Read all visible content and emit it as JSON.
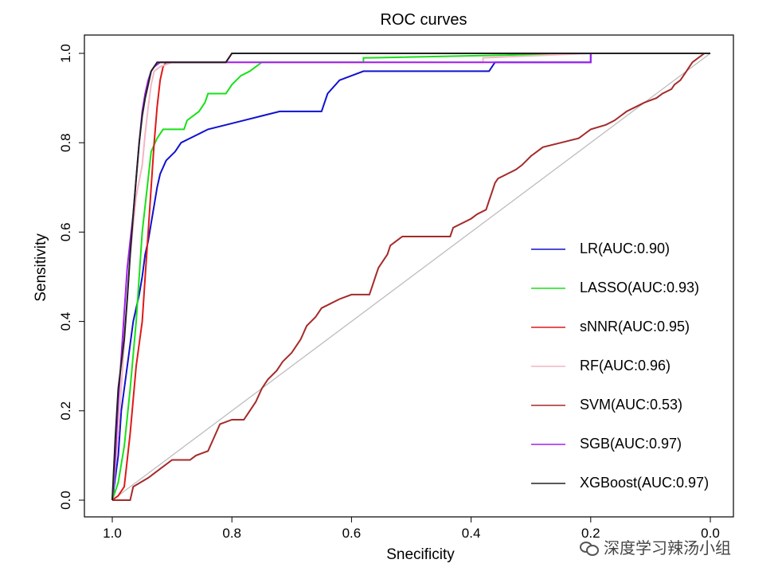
{
  "chart_data": {
    "type": "line",
    "title": "ROC curves",
    "xlabel": "Snecificity",
    "ylabel": "Sensitivity",
    "xlim": [
      1.0,
      0.0
    ],
    "ylim": [
      0.0,
      1.0
    ],
    "xticks": [
      "1.0",
      "0.8",
      "0.6",
      "0.4",
      "0.2",
      "0.0"
    ],
    "xtick_values": [
      1.0,
      0.8,
      0.6,
      0.4,
      0.2,
      0.0
    ],
    "yticks": [
      "0.0",
      "0.2",
      "0.4",
      "0.6",
      "0.8",
      "1.0"
    ],
    "ytick_values": [
      0.0,
      0.2,
      0.4,
      0.6,
      0.8,
      1.0
    ],
    "diagonal": true,
    "legend_position": "right",
    "series": [
      {
        "name": "LR(AUC:0.90)",
        "color": "#1010d0",
        "points": [
          [
            1.0,
            0.0
          ],
          [
            0.995,
            0.05
          ],
          [
            0.99,
            0.1
          ],
          [
            0.985,
            0.2
          ],
          [
            0.975,
            0.3
          ],
          [
            0.965,
            0.4
          ],
          [
            0.955,
            0.46
          ],
          [
            0.95,
            0.5
          ],
          [
            0.945,
            0.55
          ],
          [
            0.94,
            0.58
          ],
          [
            0.935,
            0.62
          ],
          [
            0.93,
            0.66
          ],
          [
            0.925,
            0.7
          ],
          [
            0.92,
            0.73
          ],
          [
            0.91,
            0.76
          ],
          [
            0.895,
            0.78
          ],
          [
            0.885,
            0.8
          ],
          [
            0.87,
            0.81
          ],
          [
            0.84,
            0.83
          ],
          [
            0.81,
            0.84
          ],
          [
            0.78,
            0.85
          ],
          [
            0.75,
            0.86
          ],
          [
            0.72,
            0.87
          ],
          [
            0.65,
            0.87
          ],
          [
            0.645,
            0.89
          ],
          [
            0.64,
            0.91
          ],
          [
            0.62,
            0.94
          ],
          [
            0.6,
            0.95
          ],
          [
            0.58,
            0.96
          ],
          [
            0.52,
            0.96
          ],
          [
            0.37,
            0.96
          ],
          [
            0.36,
            0.98
          ],
          [
            0.2,
            0.98
          ],
          [
            0.2,
            1.0
          ],
          [
            0.0,
            1.0
          ]
        ]
      },
      {
        "name": "LASSO(AUC:0.93)",
        "color": "#18e018",
        "points": [
          [
            1.0,
            0.0
          ],
          [
            0.99,
            0.04
          ],
          [
            0.98,
            0.12
          ],
          [
            0.97,
            0.25
          ],
          [
            0.96,
            0.4
          ],
          [
            0.955,
            0.5
          ],
          [
            0.95,
            0.6
          ],
          [
            0.94,
            0.72
          ],
          [
            0.935,
            0.78
          ],
          [
            0.925,
            0.81
          ],
          [
            0.915,
            0.83
          ],
          [
            0.88,
            0.83
          ],
          [
            0.875,
            0.85
          ],
          [
            0.855,
            0.87
          ],
          [
            0.845,
            0.89
          ],
          [
            0.84,
            0.91
          ],
          [
            0.81,
            0.91
          ],
          [
            0.8,
            0.93
          ],
          [
            0.785,
            0.95
          ],
          [
            0.77,
            0.96
          ],
          [
            0.76,
            0.97
          ],
          [
            0.75,
            0.98
          ],
          [
            0.58,
            0.98
          ],
          [
            0.58,
            0.99
          ],
          [
            0.57,
            0.99
          ],
          [
            0.2,
            1.0
          ],
          [
            0.0,
            1.0
          ]
        ]
      },
      {
        "name": "sNNR(AUC:0.95)",
        "color": "#e01818",
        "points": [
          [
            1.0,
            0.0
          ],
          [
            0.99,
            0.01
          ],
          [
            0.98,
            0.03
          ],
          [
            0.97,
            0.15
          ],
          [
            0.96,
            0.3
          ],
          [
            0.95,
            0.4
          ],
          [
            0.945,
            0.5
          ],
          [
            0.94,
            0.6
          ],
          [
            0.935,
            0.7
          ],
          [
            0.93,
            0.8
          ],
          [
            0.925,
            0.88
          ],
          [
            0.92,
            0.94
          ],
          [
            0.915,
            0.97
          ],
          [
            0.91,
            0.98
          ],
          [
            0.81,
            0.98
          ],
          [
            0.8,
            1.0
          ],
          [
            0.0,
            1.0
          ]
        ]
      },
      {
        "name": "RF(AUC:0.96)",
        "color": "#f4b6c2",
        "points": [
          [
            1.0,
            0.0
          ],
          [
            0.99,
            0.15
          ],
          [
            0.98,
            0.35
          ],
          [
            0.97,
            0.55
          ],
          [
            0.96,
            0.68
          ],
          [
            0.95,
            0.75
          ],
          [
            0.945,
            0.82
          ],
          [
            0.94,
            0.88
          ],
          [
            0.935,
            0.93
          ],
          [
            0.93,
            0.96
          ],
          [
            0.92,
            0.97
          ],
          [
            0.9,
            0.98
          ],
          [
            0.38,
            0.98
          ],
          [
            0.38,
            0.99
          ],
          [
            0.2,
            1.0
          ],
          [
            0.0,
            1.0
          ]
        ]
      },
      {
        "name": "SVM(AUC:0.53)",
        "color": "#a52a2a",
        "points": [
          [
            1.0,
            0.0
          ],
          [
            0.97,
            0.0
          ],
          [
            0.965,
            0.03
          ],
          [
            0.94,
            0.05
          ],
          [
            0.92,
            0.07
          ],
          [
            0.9,
            0.09
          ],
          [
            0.87,
            0.09
          ],
          [
            0.86,
            0.1
          ],
          [
            0.84,
            0.11
          ],
          [
            0.83,
            0.14
          ],
          [
            0.82,
            0.17
          ],
          [
            0.8,
            0.18
          ],
          [
            0.78,
            0.18
          ],
          [
            0.77,
            0.2
          ],
          [
            0.76,
            0.22
          ],
          [
            0.75,
            0.25
          ],
          [
            0.74,
            0.27
          ],
          [
            0.725,
            0.29
          ],
          [
            0.715,
            0.31
          ],
          [
            0.7,
            0.33
          ],
          [
            0.685,
            0.36
          ],
          [
            0.675,
            0.39
          ],
          [
            0.66,
            0.41
          ],
          [
            0.65,
            0.43
          ],
          [
            0.635,
            0.44
          ],
          [
            0.62,
            0.45
          ],
          [
            0.6,
            0.46
          ],
          [
            0.57,
            0.46
          ],
          [
            0.565,
            0.48
          ],
          [
            0.56,
            0.5
          ],
          [
            0.555,
            0.52
          ],
          [
            0.545,
            0.54
          ],
          [
            0.54,
            0.55
          ],
          [
            0.535,
            0.57
          ],
          [
            0.525,
            0.58
          ],
          [
            0.515,
            0.59
          ],
          [
            0.49,
            0.59
          ],
          [
            0.48,
            0.59
          ],
          [
            0.435,
            0.59
          ],
          [
            0.43,
            0.61
          ],
          [
            0.4,
            0.63
          ],
          [
            0.39,
            0.64
          ],
          [
            0.375,
            0.65
          ],
          [
            0.37,
            0.67
          ],
          [
            0.365,
            0.69
          ],
          [
            0.36,
            0.71
          ],
          [
            0.355,
            0.72
          ],
          [
            0.34,
            0.73
          ],
          [
            0.325,
            0.74
          ],
          [
            0.315,
            0.75
          ],
          [
            0.3,
            0.77
          ],
          [
            0.29,
            0.78
          ],
          [
            0.28,
            0.79
          ],
          [
            0.25,
            0.8
          ],
          [
            0.22,
            0.81
          ],
          [
            0.21,
            0.82
          ],
          [
            0.2,
            0.83
          ],
          [
            0.175,
            0.84
          ],
          [
            0.16,
            0.85
          ],
          [
            0.15,
            0.86
          ],
          [
            0.14,
            0.87
          ],
          [
            0.125,
            0.88
          ],
          [
            0.11,
            0.89
          ],
          [
            0.09,
            0.9
          ],
          [
            0.08,
            0.91
          ],
          [
            0.065,
            0.92
          ],
          [
            0.06,
            0.93
          ],
          [
            0.05,
            0.94
          ],
          [
            0.045,
            0.95
          ],
          [
            0.04,
            0.96
          ],
          [
            0.035,
            0.97
          ],
          [
            0.03,
            0.98
          ],
          [
            0.02,
            0.99
          ],
          [
            0.01,
            1.0
          ],
          [
            0.0,
            1.0
          ]
        ]
      },
      {
        "name": "SGB(AUC:0.97)",
        "color": "#a020f0",
        "points": [
          [
            1.0,
            0.0
          ],
          [
            0.995,
            0.1
          ],
          [
            0.99,
            0.22
          ],
          [
            0.985,
            0.32
          ],
          [
            0.98,
            0.42
          ],
          [
            0.975,
            0.52
          ],
          [
            0.97,
            0.58
          ],
          [
            0.965,
            0.64
          ],
          [
            0.96,
            0.72
          ],
          [
            0.955,
            0.8
          ],
          [
            0.95,
            0.87
          ],
          [
            0.945,
            0.91
          ],
          [
            0.94,
            0.94
          ],
          [
            0.935,
            0.96
          ],
          [
            0.93,
            0.97
          ],
          [
            0.92,
            0.98
          ],
          [
            0.2,
            0.98
          ],
          [
            0.2,
            1.0
          ],
          [
            0.0,
            1.0
          ]
        ]
      },
      {
        "name": "XGBoost(AUC:0.97)",
        "color": "#222222",
        "points": [
          [
            1.0,
            0.0
          ],
          [
            0.995,
            0.14
          ],
          [
            0.99,
            0.25
          ],
          [
            0.98,
            0.36
          ],
          [
            0.975,
            0.45
          ],
          [
            0.97,
            0.55
          ],
          [
            0.965,
            0.64
          ],
          [
            0.96,
            0.72
          ],
          [
            0.955,
            0.8
          ],
          [
            0.95,
            0.86
          ],
          [
            0.945,
            0.9
          ],
          [
            0.94,
            0.93
          ],
          [
            0.935,
            0.96
          ],
          [
            0.93,
            0.97
          ],
          [
            0.925,
            0.98
          ],
          [
            0.81,
            0.98
          ],
          [
            0.8,
            1.0
          ],
          [
            0.0,
            1.0
          ]
        ]
      }
    ]
  },
  "watermark": {
    "text": "深度学习辣汤小组",
    "icon": "wechat-icon"
  }
}
